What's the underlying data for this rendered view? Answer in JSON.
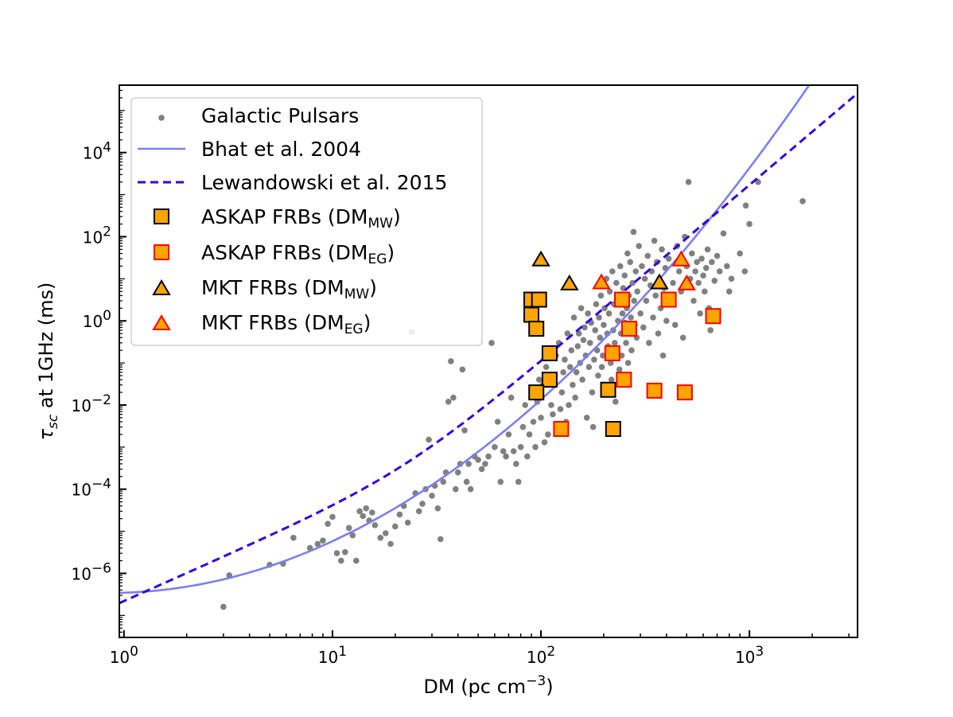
{
  "chart_data": {
    "type": "scatter",
    "xlabel": {
      "main": "DM (pc cm",
      "sup": "−3",
      "tail": ")"
    },
    "ylabel": {
      "tau": "τ",
      "sub": "sc",
      "rest": " at 1GHz (ms)"
    },
    "x_scale": "log",
    "y_scale": "log",
    "xlim": [
      0.95,
      3300
    ],
    "ylim": [
      3e-08,
      400000.0
    ],
    "x_ticks": [
      {
        "value": 1,
        "base": "10",
        "exp": "0"
      },
      {
        "value": 10,
        "base": "10",
        "exp": "1"
      },
      {
        "value": 100,
        "base": "10",
        "exp": "2"
      },
      {
        "value": 1000,
        "base": "10",
        "exp": "3"
      }
    ],
    "y_ticks": [
      {
        "value": 1e-06,
        "base": "10",
        "exp": "−6"
      },
      {
        "value": 0.0001,
        "base": "10",
        "exp": "−4"
      },
      {
        "value": 0.01,
        "base": "10",
        "exp": "−2"
      },
      {
        "value": 1,
        "base": "10",
        "exp": "0"
      },
      {
        "value": 100,
        "base": "10",
        "exp": "2"
      },
      {
        "value": 10000,
        "base": "10",
        "exp": "4"
      }
    ],
    "grid": false,
    "legend_position": "top-left",
    "colors": {
      "pulsars": "#808080",
      "bhat": "#7b7ff0",
      "lewandowski": "#3300e0",
      "frb_fill": "#ffa500",
      "mw_edge": "#000000",
      "eg_edge": "#ff0000"
    },
    "legend": [
      {
        "key": "pulsars",
        "label": "Galactic Pulsars"
      },
      {
        "key": "bhat",
        "label": "Bhat et al. 2004"
      },
      {
        "key": "lewandowski",
        "label": "Lewandowski et al. 2015"
      },
      {
        "key": "askap_mw",
        "label": "ASKAP FRBs (DM",
        "sub": "MW",
        "tail": ")"
      },
      {
        "key": "askap_eg",
        "label": "ASKAP FRBs (DM",
        "sub": "EG",
        "tail": ")"
      },
      {
        "key": "mkt_mw",
        "label": "MKT FRBs (DM",
        "sub": "MW",
        "tail": ")"
      },
      {
        "key": "mkt_eg",
        "label": "MKT FRBs (DM",
        "sub": "EG",
        "tail": ")"
      }
    ],
    "series": {
      "askap_mw": [
        [
          90,
          3.2
        ],
        [
          98,
          3.2
        ],
        [
          90,
          1.4
        ],
        [
          95,
          0.65
        ],
        [
          110,
          0.17
        ],
        [
          110,
          0.04
        ],
        [
          95,
          0.02
        ],
        [
          210,
          0.023
        ],
        [
          222,
          0.0027
        ]
      ],
      "askap_eg": [
        [
          245,
          3.2
        ],
        [
          265,
          0.65
        ],
        [
          220,
          0.17
        ],
        [
          250,
          0.04
        ],
        [
          350,
          0.022
        ],
        [
          410,
          3.2
        ],
        [
          490,
          0.02
        ],
        [
          670,
          1.3
        ],
        [
          125,
          0.0027
        ]
      ],
      "mkt_mw": [
        [
          100,
          28
        ],
        [
          137,
          7.5
        ],
        [
          370,
          8
        ]
      ],
      "mkt_eg": [
        [
          195,
          8
        ],
        [
          470,
          28
        ],
        [
          500,
          7.5
        ]
      ],
      "pulsars": [
        [
          3.0,
          1.6e-07
        ],
        [
          3.2,
          9e-07
        ],
        [
          5.0,
          1.6e-06
        ],
        [
          5.8,
          1.7e-06
        ],
        [
          6.5,
          7e-06
        ],
        [
          7.8,
          4e-06
        ],
        [
          8.5,
          5e-06
        ],
        [
          9.0,
          6e-06
        ],
        [
          9.5,
          1.5e-05
        ],
        [
          10,
          2.2e-05
        ],
        [
          10.5,
          3e-06
        ],
        [
          11,
          2e-06
        ],
        [
          11.5,
          3.2e-06
        ],
        [
          12,
          1.2e-05
        ],
        [
          12.5,
          8e-06
        ],
        [
          13,
          2e-06
        ],
        [
          13.5,
          3e-05
        ],
        [
          14,
          2.3e-05
        ],
        [
          14.5,
          3.5e-05
        ],
        [
          15,
          1.8e-05
        ],
        [
          15.5,
          2.8e-05
        ],
        [
          16,
          1.4e-05
        ],
        [
          17,
          7e-06
        ],
        [
          18,
          9e-06
        ],
        [
          19,
          5e-06
        ],
        [
          20,
          1.3e-05
        ],
        [
          21,
          2.5e-05
        ],
        [
          22,
          4e-05
        ],
        [
          23,
          1.6e-05
        ],
        [
          24,
          0.55
        ],
        [
          25,
          8e-05
        ],
        [
          26,
          3e-05
        ],
        [
          27,
          4.5e-05
        ],
        [
          28,
          0.0001
        ],
        [
          29,
          0.0015
        ],
        [
          30,
          7e-05
        ],
        [
          31,
          0.00012
        ],
        [
          32,
          3.5e-05
        ],
        [
          33,
          6.5e-06
        ],
        [
          34,
          0.00015
        ],
        [
          35,
          0.00025
        ],
        [
          36,
          0.012
        ],
        [
          37,
          0.11
        ],
        [
          38,
          0.015
        ],
        [
          39,
          0.0001
        ],
        [
          40,
          0.00025
        ],
        [
          41,
          0.0004
        ],
        [
          42,
          0.07
        ],
        [
          43,
          0.0025
        ],
        [
          44,
          0.00015
        ],
        [
          45,
          0.0004
        ],
        [
          46,
          0.0001
        ],
        [
          48,
          0.0006
        ],
        [
          50,
          0.0005
        ],
        [
          52,
          0.0003
        ],
        [
          54,
          0.0004
        ],
        [
          56,
          0.0006
        ],
        [
          58,
          0.3
        ],
        [
          60,
          0.001
        ],
        [
          62,
          0.004
        ],
        [
          64,
          0.00015
        ],
        [
          66,
          0.0008
        ],
        [
          68,
          0.0006
        ],
        [
          70,
          0.002
        ],
        [
          72,
          0.015
        ],
        [
          74,
          0.0008
        ],
        [
          76,
          0.0004
        ],
        [
          78,
          0.00015
        ],
        [
          80,
          0.001
        ],
        [
          82,
          0.003
        ],
        [
          84,
          0.01
        ],
        [
          86,
          0.0006
        ],
        [
          88,
          0.002
        ],
        [
          90,
          0.02
        ],
        [
          92,
          0.004
        ],
        [
          94,
          0.001
        ],
        [
          96,
          0.012
        ],
        [
          98,
          0.04
        ],
        [
          100,
          0.005
        ],
        [
          102,
          0.03
        ],
        [
          104,
          0.0013
        ],
        [
          106,
          0.08
        ],
        [
          108,
          0.002
        ],
        [
          112,
          0.01
        ],
        [
          114,
          0.006
        ],
        [
          116,
          0.05
        ],
        [
          118,
          0.15
        ],
        [
          120,
          0.003
        ],
        [
          122,
          0.3
        ],
        [
          124,
          0.008
        ],
        [
          126,
          0.02
        ],
        [
          128,
          0.06
        ],
        [
          130,
          0.12
        ],
        [
          132,
          0.004
        ],
        [
          134,
          0.5
        ],
        [
          136,
          0.01
        ],
        [
          138,
          0.08
        ],
        [
          140,
          0.2
        ],
        [
          142,
          0.03
        ],
        [
          144,
          1.2
        ],
        [
          146,
          0.015
        ],
        [
          148,
          0.06
        ],
        [
          150,
          0.25
        ],
        [
          152,
          0.5
        ],
        [
          154,
          0.1
        ],
        [
          156,
          2
        ],
        [
          158,
          0.04
        ],
        [
          160,
          0.35
        ],
        [
          162,
          0.7
        ],
        [
          164,
          0.15
        ],
        [
          166,
          0.005
        ],
        [
          168,
          1.5
        ],
        [
          170,
          0.08
        ],
        [
          172,
          0.3
        ],
        [
          174,
          0.9
        ],
        [
          176,
          0.02
        ],
        [
          178,
          0.003
        ],
        [
          180,
          0.12
        ],
        [
          182,
          0.6
        ],
        [
          184,
          2.5
        ],
        [
          186,
          0.2
        ],
        [
          188,
          0.05
        ],
        [
          190,
          1.2
        ],
        [
          192,
          0.4
        ],
        [
          194,
          4
        ],
        [
          196,
          0.08
        ],
        [
          198,
          0.15
        ],
        [
          200,
          0.8
        ],
        [
          202,
          2
        ],
        [
          204,
          0.03
        ],
        [
          206,
          10
        ],
        [
          208,
          0.5
        ],
        [
          210,
          0.25
        ],
        [
          212,
          1.5
        ],
        [
          214,
          5
        ],
        [
          216,
          0.1
        ],
        [
          218,
          0.04
        ],
        [
          220,
          15
        ],
        [
          222,
          0.6
        ],
        [
          224,
          2.5
        ],
        [
          226,
          0.3
        ],
        [
          228,
          0.012
        ],
        [
          230,
          8
        ],
        [
          232,
          0.2
        ],
        [
          234,
          1
        ],
        [
          236,
          3
        ],
        [
          238,
          0.07
        ],
        [
          240,
          20
        ],
        [
          242,
          0.5
        ],
        [
          244,
          0.15
        ],
        [
          246,
          1.5
        ],
        [
          248,
          6
        ],
        [
          250,
          0.04
        ],
        [
          252,
          12
        ],
        [
          254,
          0.9
        ],
        [
          256,
          0.3
        ],
        [
          258,
          2
        ],
        [
          260,
          40
        ],
        [
          262,
          0.1
        ],
        [
          264,
          4
        ],
        [
          266,
          0.6
        ],
        [
          268,
          25
        ],
        [
          270,
          1.2
        ],
        [
          272,
          0.2
        ],
        [
          275,
          8
        ],
        [
          278,
          130
        ],
        [
          280,
          3
        ],
        [
          282,
          0.8
        ],
        [
          285,
          15
        ],
        [
          288,
          0.4
        ],
        [
          290,
          5
        ],
        [
          295,
          60
        ],
        [
          300,
          1.5
        ],
        [
          305,
          20
        ],
        [
          310,
          0.7
        ],
        [
          315,
          10
        ],
        [
          320,
          3
        ],
        [
          325,
          35
        ],
        [
          330,
          0.3
        ],
        [
          335,
          7
        ],
        [
          340,
          15
        ],
        [
          345,
          1.2
        ],
        [
          350,
          80
        ],
        [
          355,
          4
        ],
        [
          360,
          25
        ],
        [
          365,
          0.5
        ],
        [
          370,
          10
        ],
        [
          375,
          2
        ],
        [
          380,
          50
        ],
        [
          385,
          0.15
        ],
        [
          390,
          6
        ],
        [
          395,
          18
        ],
        [
          400,
          1
        ],
        [
          410,
          30
        ],
        [
          420,
          3
        ],
        [
          430,
          8
        ],
        [
          440,
          0.8
        ],
        [
          450,
          60
        ],
        [
          460,
          15
        ],
        [
          470,
          5
        ],
        [
          480,
          0.4
        ],
        [
          490,
          100
        ],
        [
          500,
          20
        ],
        [
          510,
          2000
        ],
        [
          520,
          10
        ],
        [
          530,
          40
        ],
        [
          540,
          3
        ],
        [
          550,
          15
        ],
        [
          560,
          25
        ],
        [
          570,
          8
        ],
        [
          580,
          1.5
        ],
        [
          590,
          30
        ],
        [
          600,
          12
        ],
        [
          610,
          5
        ],
        [
          620,
          18
        ],
        [
          630,
          50
        ],
        [
          640,
          2
        ],
        [
          650,
          0.6
        ],
        [
          660,
          25
        ],
        [
          680,
          9
        ],
        [
          700,
          35
        ],
        [
          720,
          15
        ],
        [
          750,
          120
        ],
        [
          780,
          20
        ],
        [
          800,
          5
        ],
        [
          820,
          10
        ],
        [
          900,
          40
        ],
        [
          950,
          15
        ],
        [
          960,
          550
        ],
        [
          1000,
          200
        ],
        [
          1100,
          2000
        ],
        [
          1800,
          700
        ]
      ]
    }
  }
}
